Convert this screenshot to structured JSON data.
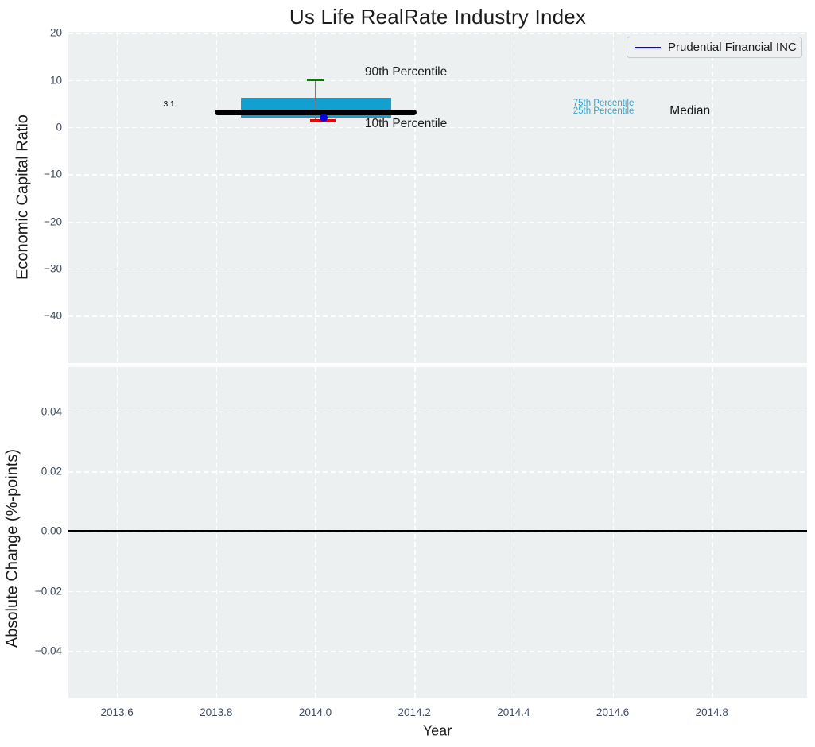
{
  "title": "Us Life RealRate Industry Index",
  "colors": {
    "axes_background": "#edf0f1",
    "grid": "#ffffff",
    "tick_label": "#3e4b5f",
    "text": "#1c1c1c",
    "box_fill": "#12a0d3",
    "percentile_label": "#29a8d6",
    "cap_90": "#007d00",
    "cap_10": "#f00000",
    "median": "#000000",
    "company_point": "#0202dd",
    "legend_line": "#0000ff",
    "zero_line": "#000000"
  },
  "chart_data": [
    {
      "type": "box",
      "title": "Us Life RealRate Industry Index",
      "xlabel": "Year",
      "ylabel": "Economic Capital Ratio",
      "xlim": [
        2013.502,
        2014.992
      ],
      "ylim": [
        -50.1,
        20.25
      ],
      "show_xtick_labels": false,
      "xticks": {
        "values": [
          2013.6,
          2013.8,
          2014.0,
          2014.2,
          2014.4,
          2014.6,
          2014.8
        ],
        "labels": [
          "2013.6",
          "2013.8",
          "2014.0",
          "2014.2",
          "2014.4",
          "2014.6",
          "2014.8"
        ]
      },
      "yticks": {
        "values": [
          20,
          10,
          0,
          -10,
          -20,
          -30,
          -40
        ],
        "labels": [
          "20",
          "10",
          "0",
          "−10",
          "−20",
          "−30",
          "−40"
        ]
      },
      "grid": {
        "show": true,
        "style": "dashed",
        "color": "#ffffff"
      },
      "legend": {
        "position": "upper right",
        "entries": [
          {
            "label": "Prudential Financial INC",
            "color": "#0000ff"
          }
        ]
      },
      "industry_box": {
        "year": 2014.0,
        "cap10_year": 2014.015,
        "median": 3.1,
        "percentile_25": 1.96,
        "percentile_75": 6.2,
        "percentile_10": 1.4,
        "percentile_90": 10.0,
        "median_year_span": [
          2013.797,
          2014.204
        ],
        "box_year_span": [
          2013.85,
          2014.153
        ]
      },
      "series": [
        {
          "name": "Prudential Financial INC",
          "marker": "circle",
          "color": "#0202dd",
          "x": [
            2014.017
          ],
          "y": [
            1.95
          ]
        }
      ],
      "annotations": [
        {
          "text": "3.1",
          "x": 2013.705,
          "y": 4.8,
          "size": 10,
          "color": "#000000",
          "ha": "center"
        },
        {
          "text": "90th Percentile",
          "x": 2014.1,
          "y": 11.6,
          "size": 15.5,
          "color": "#1c1c1c",
          "ha": "left"
        },
        {
          "text": "10th Percentile",
          "x": 2014.1,
          "y": 0.6,
          "size": 15.5,
          "color": "#1c1c1c",
          "ha": "left"
        },
        {
          "text": "75th Percentile",
          "x": 2014.52,
          "y": 5.0,
          "size": 11.5,
          "color": "#29a8d6",
          "ha": "left"
        },
        {
          "text": "25th Percentile",
          "x": 2014.52,
          "y": 3.3,
          "size": 11.5,
          "color": "#29a8d6",
          "ha": "left"
        },
        {
          "text": "Median",
          "x": 2014.715,
          "y": 3.4,
          "size": 15.5,
          "color": "#111111",
          "ha": "left"
        }
      ]
    },
    {
      "type": "line",
      "xlabel": "Year",
      "ylabel": "Absolute Change (%-points)",
      "xlim": [
        2013.502,
        2014.992
      ],
      "ylim": [
        -0.0556,
        0.0548
      ],
      "show_xtick_labels": true,
      "xticks": {
        "values": [
          2013.6,
          2013.8,
          2014.0,
          2014.2,
          2014.4,
          2014.6,
          2014.8
        ],
        "labels": [
          "2013.6",
          "2013.8",
          "2014.0",
          "2014.2",
          "2014.4",
          "2014.6",
          "2014.8"
        ]
      },
      "yticks": {
        "values": [
          0.04,
          0.02,
          0.0,
          -0.02,
          -0.04
        ],
        "labels": [
          "0.04",
          "0.02",
          "0.00",
          "−0.02",
          "−0.04"
        ]
      },
      "grid": {
        "show": true,
        "style": "dashed",
        "color": "#ffffff"
      },
      "zero_line": {
        "y": 0.0,
        "color": "#000000"
      }
    }
  ]
}
